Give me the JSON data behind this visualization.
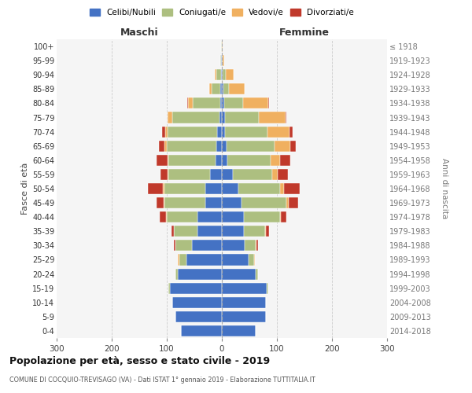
{
  "age_groups": [
    "0-4",
    "5-9",
    "10-14",
    "15-19",
    "20-24",
    "25-29",
    "30-34",
    "35-39",
    "40-44",
    "45-49",
    "50-54",
    "55-59",
    "60-64",
    "65-69",
    "70-74",
    "75-79",
    "80-84",
    "85-89",
    "90-94",
    "95-99",
    "100+"
  ],
  "birth_years": [
    "2014-2018",
    "2009-2013",
    "2004-2008",
    "1999-2003",
    "1994-1998",
    "1989-1993",
    "1984-1988",
    "1979-1983",
    "1974-1978",
    "1969-1973",
    "1964-1968",
    "1959-1963",
    "1954-1958",
    "1949-1953",
    "1944-1948",
    "1939-1943",
    "1934-1938",
    "1929-1933",
    "1924-1928",
    "1919-1923",
    "≤ 1918"
  ],
  "males": {
    "celibi": [
      75,
      85,
      90,
      95,
      80,
      65,
      55,
      45,
      45,
      30,
      30,
      22,
      12,
      10,
      8,
      5,
      3,
      3,
      2,
      1,
      0
    ],
    "coniugati": [
      0,
      0,
      0,
      2,
      5,
      12,
      30,
      42,
      55,
      75,
      75,
      75,
      85,
      90,
      90,
      85,
      50,
      15,
      8,
      2,
      1
    ],
    "vedovi": [
      0,
      0,
      0,
      0,
      0,
      3,
      0,
      0,
      1,
      1,
      2,
      2,
      2,
      4,
      5,
      8,
      8,
      5,
      3,
      0,
      0
    ],
    "divorziati": [
      0,
      0,
      0,
      0,
      0,
      0,
      2,
      5,
      12,
      12,
      28,
      12,
      20,
      10,
      5,
      0,
      2,
      0,
      0,
      0,
      0
    ]
  },
  "females": {
    "nubili": [
      62,
      80,
      80,
      82,
      62,
      48,
      42,
      40,
      40,
      35,
      30,
      20,
      10,
      8,
      5,
      5,
      4,
      3,
      2,
      0,
      0
    ],
    "coniugate": [
      0,
      0,
      0,
      2,
      4,
      10,
      20,
      38,
      65,
      82,
      75,
      72,
      78,
      88,
      78,
      62,
      35,
      10,
      5,
      2,
      0
    ],
    "vedove": [
      0,
      0,
      0,
      0,
      0,
      2,
      1,
      2,
      2,
      4,
      8,
      10,
      18,
      28,
      40,
      48,
      45,
      28,
      15,
      2,
      1
    ],
    "divorziate": [
      0,
      0,
      0,
      0,
      0,
      0,
      2,
      5,
      10,
      18,
      28,
      18,
      18,
      10,
      5,
      2,
      2,
      0,
      0,
      0,
      0
    ]
  },
  "colors": {
    "celibi_nubili": "#4472C4",
    "coniugati": "#ADBF80",
    "vedovi": "#F0B060",
    "divorziati": "#C0392B"
  },
  "xlim": 300,
  "title": "Popolazione per età, sesso e stato civile - 2019",
  "subtitle": "COMUNE DI COCQUIO-TREVISAGO (VA) - Dati ISTAT 1° gennaio 2019 - Elaborazione TUTTITALIA.IT",
  "ylabel_left": "Fasce di età",
  "ylabel_right": "Anni di nascita",
  "xlabel_left": "Maschi",
  "xlabel_right": "Femmine",
  "bg_color": "#efefef",
  "plot_bg": "#f5f5f5"
}
